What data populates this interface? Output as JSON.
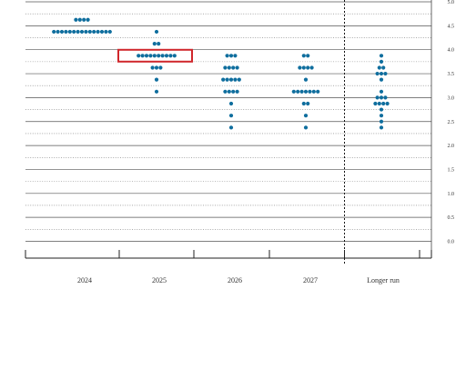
{
  "chart_data": {
    "type": "scatter",
    "subtype": "dot-plot",
    "categories": [
      "2024",
      "2025",
      "2026",
      "2027",
      "Longer run"
    ],
    "ylim": [
      0,
      5.0
    ],
    "yticks": [
      "0.0",
      "0.5",
      "1.0",
      "1.5",
      "2.0",
      "2.5",
      "3.0",
      "3.5",
      "4.0",
      "4.5",
      "5.0"
    ],
    "grid": {
      "major": true,
      "minor_dotted": true
    },
    "divider_before": "Longer run",
    "dots": [
      {
        "category": "2024",
        "y": 4.625,
        "count": 4
      },
      {
        "category": "2024",
        "y": 4.375,
        "count": 15
      },
      {
        "category": "2025",
        "y": 4.375,
        "count": 1
      },
      {
        "category": "2025",
        "y": 4.125,
        "count": 2
      },
      {
        "category": "2025",
        "y": 3.875,
        "count": 10
      },
      {
        "category": "2025",
        "y": 3.625,
        "count": 3
      },
      {
        "category": "2025",
        "y": 3.375,
        "count": 1
      },
      {
        "category": "2025",
        "y": 3.125,
        "count": 1
      },
      {
        "category": "2026",
        "y": 3.875,
        "count": 3
      },
      {
        "category": "2026",
        "y": 3.625,
        "count": 4
      },
      {
        "category": "2026",
        "y": 3.375,
        "count": 5
      },
      {
        "category": "2026",
        "y": 3.125,
        "count": 4
      },
      {
        "category": "2026",
        "y": 2.875,
        "count": 1
      },
      {
        "category": "2026",
        "y": 2.625,
        "count": 1
      },
      {
        "category": "2026",
        "y": 2.375,
        "count": 1
      },
      {
        "category": "2027",
        "y": 3.875,
        "count": 2
      },
      {
        "category": "2027",
        "y": 3.625,
        "count": 4
      },
      {
        "category": "2027",
        "y": 3.375,
        "count": 1
      },
      {
        "category": "2027",
        "y": 3.125,
        "count": 7
      },
      {
        "category": "2027",
        "y": 2.875,
        "count": 2
      },
      {
        "category": "2027",
        "y": 2.625,
        "count": 1
      },
      {
        "category": "2027",
        "y": 2.375,
        "count": 1
      },
      {
        "category": "Longer run",
        "y": 3.875,
        "count": 1
      },
      {
        "category": "Longer run",
        "y": 3.75,
        "count": 1
      },
      {
        "category": "Longer run",
        "y": 3.625,
        "count": 2
      },
      {
        "category": "Longer run",
        "y": 3.5,
        "count": 3
      },
      {
        "category": "Longer run",
        "y": 3.375,
        "count": 1
      },
      {
        "category": "Longer run",
        "y": 3.125,
        "count": 1
      },
      {
        "category": "Longer run",
        "y": 3.0,
        "count": 3
      },
      {
        "category": "Longer run",
        "y": 2.875,
        "count": 4
      },
      {
        "category": "Longer run",
        "y": 2.75,
        "count": 1
      },
      {
        "category": "Longer run",
        "y": 2.625,
        "count": 1
      },
      {
        "category": "Longer run",
        "y": 2.5,
        "count": 1
      },
      {
        "category": "Longer run",
        "y": 2.375,
        "count": 1
      }
    ],
    "highlight": {
      "category": "2025",
      "y": 3.875
    },
    "colors": {
      "dot": "#0f6e9e",
      "highlight": "#d0262b",
      "grid": "#444444"
    }
  }
}
